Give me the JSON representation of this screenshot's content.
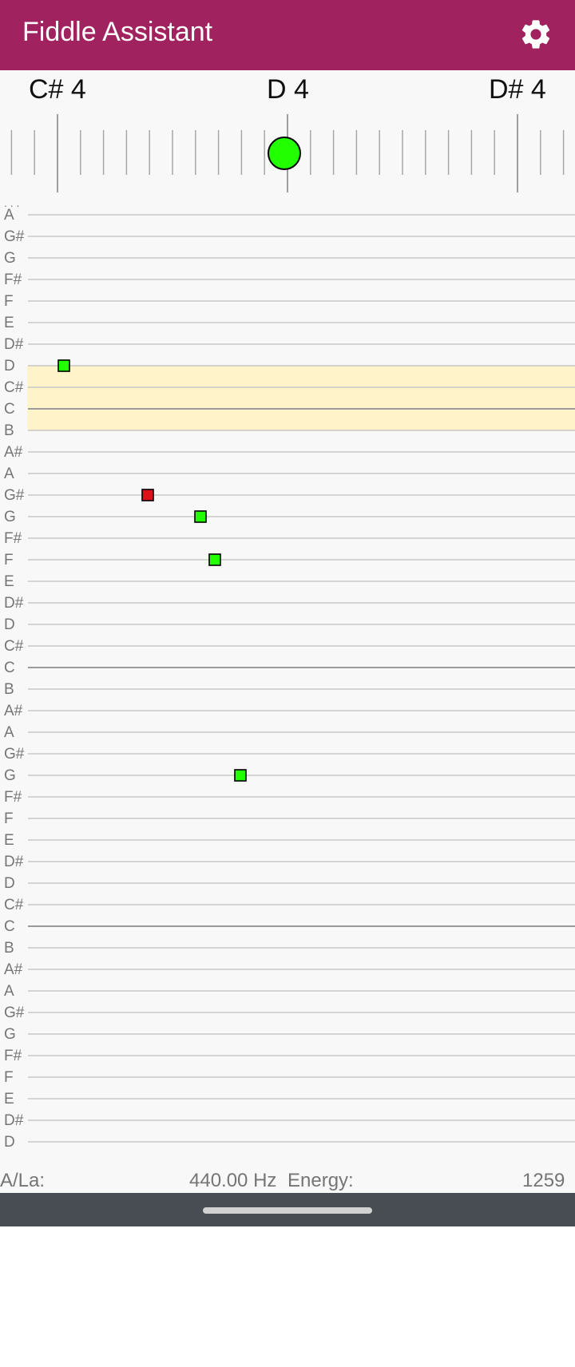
{
  "app": {
    "title": "Fiddle Assistant"
  },
  "icons": {
    "settings": "gear-icon"
  },
  "colors": {
    "app_bar": "#a0225f",
    "in_tune": "#22ff00",
    "off_note": "#e0101a",
    "highlight_band": "#fff3c9",
    "nav_bar": "#474d52"
  },
  "tuner": {
    "left_note": "C# 4",
    "center_note": "D 4",
    "right_note": "D# 4",
    "cents_offset": 0
  },
  "staff": {
    "truncated_top_label": ". . .",
    "rows": [
      "A",
      "G#",
      "G",
      "F#",
      "F",
      "E",
      "D#",
      "D",
      "C#",
      "C",
      "B",
      "A#",
      "A",
      "G#",
      "G",
      "F#",
      "F",
      "E",
      "D#",
      "D",
      "C#",
      "C",
      "B",
      "A#",
      "A",
      "G#",
      "G",
      "F#",
      "F",
      "E",
      "D#",
      "D",
      "C#",
      "C",
      "B",
      "A#",
      "A",
      "G#",
      "G",
      "F#",
      "F",
      "E",
      "D#",
      "D"
    ],
    "highlight_rows": [
      "D",
      "C#",
      "C"
    ],
    "notes": [
      {
        "note": "D",
        "row": 7,
        "status": "in_tune"
      },
      {
        "note": "G#",
        "row": 13,
        "status": "off"
      },
      {
        "note": "G",
        "row": 14,
        "status": "in_tune"
      },
      {
        "note": "F",
        "row": 16,
        "status": "in_tune"
      },
      {
        "note": "G",
        "row": 26,
        "status": "in_tune"
      }
    ]
  },
  "status_bar": {
    "reference_label": "A/La:",
    "reference_value": "440.00 Hz",
    "energy_label": "Energy:",
    "energy_value": "1259"
  }
}
